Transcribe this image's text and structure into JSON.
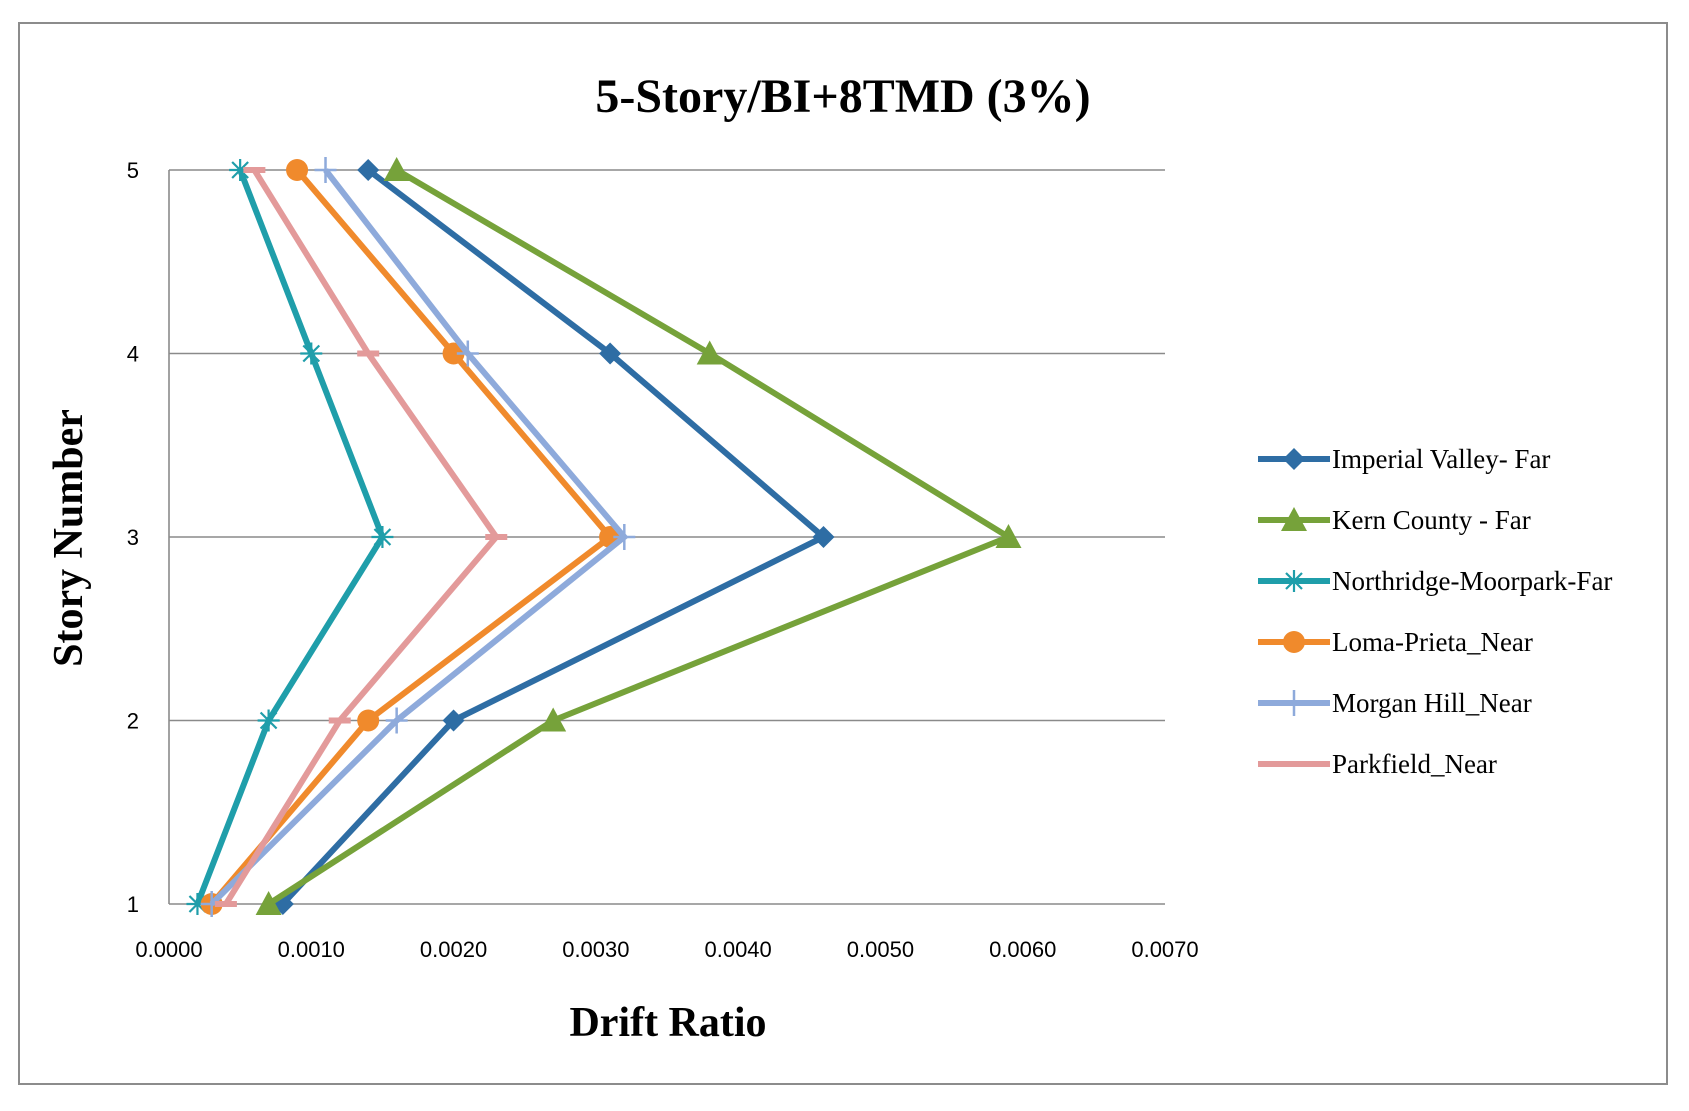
{
  "chart_data": {
    "type": "line",
    "title": "5-Story/BI+8TMD  (3%)",
    "xlabel": "Drift Ratio",
    "ylabel": "Story Number",
    "xlim": [
      0.0,
      0.007
    ],
    "ylim": [
      1,
      5
    ],
    "x_ticks": [
      "0.0000",
      "0.0010",
      "0.0020",
      "0.0030",
      "0.0040",
      "0.0050",
      "0.0060",
      "0.0070"
    ],
    "x_tick_values": [
      0,
      0.001,
      0.002,
      0.003,
      0.004,
      0.005,
      0.006,
      0.007
    ],
    "y_ticks": [
      "1",
      "2",
      "3",
      "4",
      "5"
    ],
    "y_tick_values": [
      1,
      2,
      3,
      4,
      5
    ],
    "grid": "horizontal",
    "legend": "right",
    "stories": [
      1,
      2,
      3,
      4,
      5
    ],
    "series": [
      {
        "name": "Imperial Valley- Far",
        "color": "#2e6da4",
        "marker": "diamond",
        "values": [
          0.0008,
          0.002,
          0.0046,
          0.0031,
          0.0014
        ]
      },
      {
        "name": "Kern County - Far",
        "color": "#76a23a",
        "marker": "triangle",
        "values": [
          0.0007,
          0.0027,
          0.0059,
          0.0038,
          0.0016
        ]
      },
      {
        "name": "Northridge-Moorpark-Far",
        "color": "#1f9eaa",
        "marker": "asterisk",
        "values": [
          0.0002,
          0.0007,
          0.0015,
          0.001,
          0.0005
        ]
      },
      {
        "name": "Loma-Prieta_Near",
        "color": "#f08a2c",
        "marker": "circle",
        "values": [
          0.0003,
          0.0014,
          0.0031,
          0.002,
          0.0009
        ]
      },
      {
        "name": "Morgan Hill_Near",
        "color": "#8eaadb",
        "marker": "plus",
        "values": [
          0.0003,
          0.0016,
          0.0032,
          0.0021,
          0.0011
        ]
      },
      {
        "name": "Parkfield_Near",
        "color": "#e39a9a",
        "marker": "dash",
        "values": [
          0.0004,
          0.0012,
          0.0023,
          0.0014,
          0.0006
        ]
      }
    ]
  }
}
